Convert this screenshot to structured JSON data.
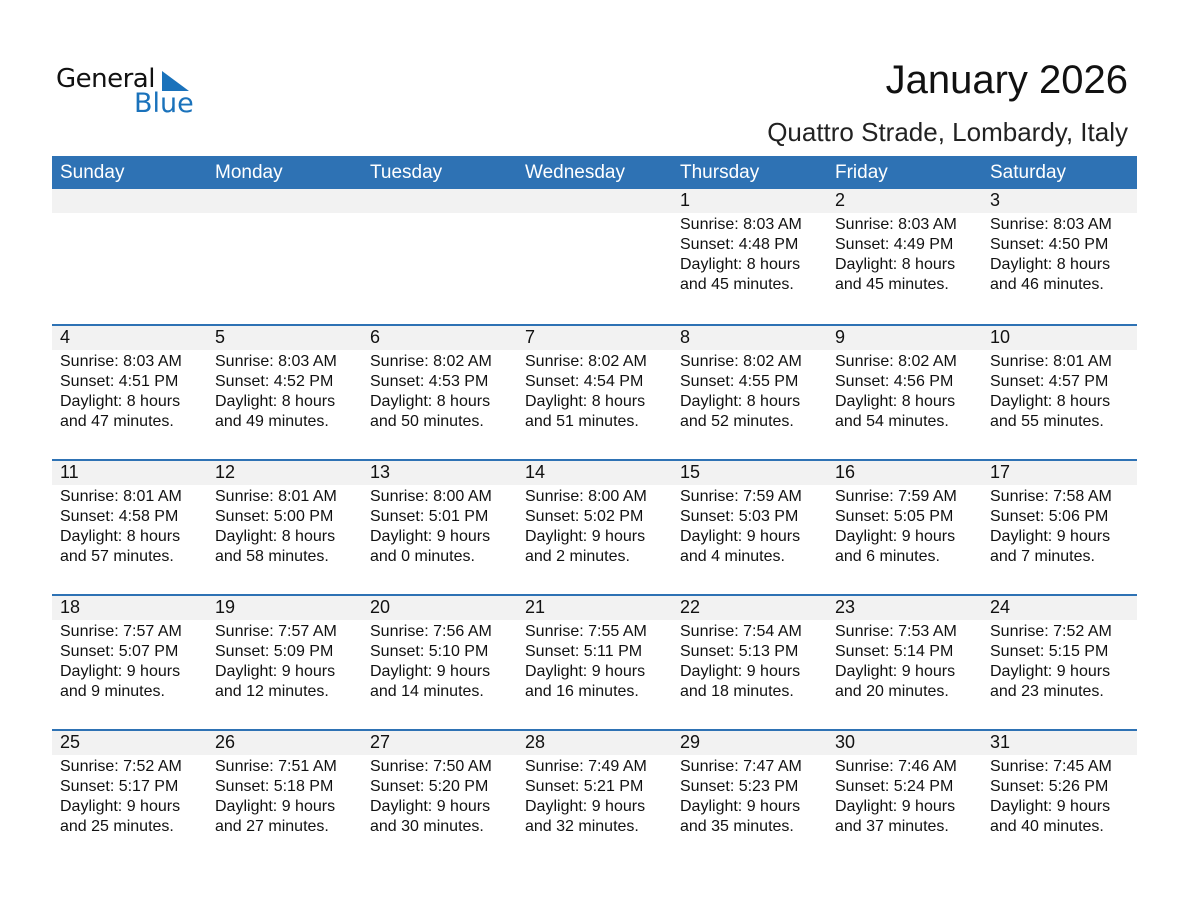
{
  "logo": {
    "word1": "General",
    "word2": "Blue"
  },
  "title": "January 2026",
  "location": "Quattro Strade, Lombardy, Italy",
  "colors": {
    "header": "#2E72B4",
    "band": "#F2F2F2",
    "logo_blue": "#1a72bb"
  },
  "weekdays": [
    "Sunday",
    "Monday",
    "Tuesday",
    "Wednesday",
    "Thursday",
    "Friday",
    "Saturday"
  ],
  "weeks": [
    [
      null,
      null,
      null,
      null,
      {
        "day": "1",
        "lines": [
          "Sunrise: 8:03 AM",
          "Sunset: 4:48 PM",
          "Daylight: 8 hours",
          "and 45 minutes."
        ]
      },
      {
        "day": "2",
        "lines": [
          "Sunrise: 8:03 AM",
          "Sunset: 4:49 PM",
          "Daylight: 8 hours",
          "and 45 minutes."
        ]
      },
      {
        "day": "3",
        "lines": [
          "Sunrise: 8:03 AM",
          "Sunset: 4:50 PM",
          "Daylight: 8 hours",
          "and 46 minutes."
        ]
      }
    ],
    [
      {
        "day": "4",
        "lines": [
          "Sunrise: 8:03 AM",
          "Sunset: 4:51 PM",
          "Daylight: 8 hours",
          "and 47 minutes."
        ]
      },
      {
        "day": "5",
        "lines": [
          "Sunrise: 8:03 AM",
          "Sunset: 4:52 PM",
          "Daylight: 8 hours",
          "and 49 minutes."
        ]
      },
      {
        "day": "6",
        "lines": [
          "Sunrise: 8:02 AM",
          "Sunset: 4:53 PM",
          "Daylight: 8 hours",
          "and 50 minutes."
        ]
      },
      {
        "day": "7",
        "lines": [
          "Sunrise: 8:02 AM",
          "Sunset: 4:54 PM",
          "Daylight: 8 hours",
          "and 51 minutes."
        ]
      },
      {
        "day": "8",
        "lines": [
          "Sunrise: 8:02 AM",
          "Sunset: 4:55 PM",
          "Daylight: 8 hours",
          "and 52 minutes."
        ]
      },
      {
        "day": "9",
        "lines": [
          "Sunrise: 8:02 AM",
          "Sunset: 4:56 PM",
          "Daylight: 8 hours",
          "and 54 minutes."
        ]
      },
      {
        "day": "10",
        "lines": [
          "Sunrise: 8:01 AM",
          "Sunset: 4:57 PM",
          "Daylight: 8 hours",
          "and 55 minutes."
        ]
      }
    ],
    [
      {
        "day": "11",
        "lines": [
          "Sunrise: 8:01 AM",
          "Sunset: 4:58 PM",
          "Daylight: 8 hours",
          "and 57 minutes."
        ]
      },
      {
        "day": "12",
        "lines": [
          "Sunrise: 8:01 AM",
          "Sunset: 5:00 PM",
          "Daylight: 8 hours",
          "and 58 minutes."
        ]
      },
      {
        "day": "13",
        "lines": [
          "Sunrise: 8:00 AM",
          "Sunset: 5:01 PM",
          "Daylight: 9 hours",
          "and 0 minutes."
        ]
      },
      {
        "day": "14",
        "lines": [
          "Sunrise: 8:00 AM",
          "Sunset: 5:02 PM",
          "Daylight: 9 hours",
          "and 2 minutes."
        ]
      },
      {
        "day": "15",
        "lines": [
          "Sunrise: 7:59 AM",
          "Sunset: 5:03 PM",
          "Daylight: 9 hours",
          "and 4 minutes."
        ]
      },
      {
        "day": "16",
        "lines": [
          "Sunrise: 7:59 AM",
          "Sunset: 5:05 PM",
          "Daylight: 9 hours",
          "and 6 minutes."
        ]
      },
      {
        "day": "17",
        "lines": [
          "Sunrise: 7:58 AM",
          "Sunset: 5:06 PM",
          "Daylight: 9 hours",
          "and 7 minutes."
        ]
      }
    ],
    [
      {
        "day": "18",
        "lines": [
          "Sunrise: 7:57 AM",
          "Sunset: 5:07 PM",
          "Daylight: 9 hours",
          "and 9 minutes."
        ]
      },
      {
        "day": "19",
        "lines": [
          "Sunrise: 7:57 AM",
          "Sunset: 5:09 PM",
          "Daylight: 9 hours",
          "and 12 minutes."
        ]
      },
      {
        "day": "20",
        "lines": [
          "Sunrise: 7:56 AM",
          "Sunset: 5:10 PM",
          "Daylight: 9 hours",
          "and 14 minutes."
        ]
      },
      {
        "day": "21",
        "lines": [
          "Sunrise: 7:55 AM",
          "Sunset: 5:11 PM",
          "Daylight: 9 hours",
          "and 16 minutes."
        ]
      },
      {
        "day": "22",
        "lines": [
          "Sunrise: 7:54 AM",
          "Sunset: 5:13 PM",
          "Daylight: 9 hours",
          "and 18 minutes."
        ]
      },
      {
        "day": "23",
        "lines": [
          "Sunrise: 7:53 AM",
          "Sunset: 5:14 PM",
          "Daylight: 9 hours",
          "and 20 minutes."
        ]
      },
      {
        "day": "24",
        "lines": [
          "Sunrise: 7:52 AM",
          "Sunset: 5:15 PM",
          "Daylight: 9 hours",
          "and 23 minutes."
        ]
      }
    ],
    [
      {
        "day": "25",
        "lines": [
          "Sunrise: 7:52 AM",
          "Sunset: 5:17 PM",
          "Daylight: 9 hours",
          "and 25 minutes."
        ]
      },
      {
        "day": "26",
        "lines": [
          "Sunrise: 7:51 AM",
          "Sunset: 5:18 PM",
          "Daylight: 9 hours",
          "and 27 minutes."
        ]
      },
      {
        "day": "27",
        "lines": [
          "Sunrise: 7:50 AM",
          "Sunset: 5:20 PM",
          "Daylight: 9 hours",
          "and 30 minutes."
        ]
      },
      {
        "day": "28",
        "lines": [
          "Sunrise: 7:49 AM",
          "Sunset: 5:21 PM",
          "Daylight: 9 hours",
          "and 32 minutes."
        ]
      },
      {
        "day": "29",
        "lines": [
          "Sunrise: 7:47 AM",
          "Sunset: 5:23 PM",
          "Daylight: 9 hours",
          "and 35 minutes."
        ]
      },
      {
        "day": "30",
        "lines": [
          "Sunrise: 7:46 AM",
          "Sunset: 5:24 PM",
          "Daylight: 9 hours",
          "and 37 minutes."
        ]
      },
      {
        "day": "31",
        "lines": [
          "Sunrise: 7:45 AM",
          "Sunset: 5:26 PM",
          "Daylight: 9 hours",
          "and 40 minutes."
        ]
      }
    ]
  ]
}
